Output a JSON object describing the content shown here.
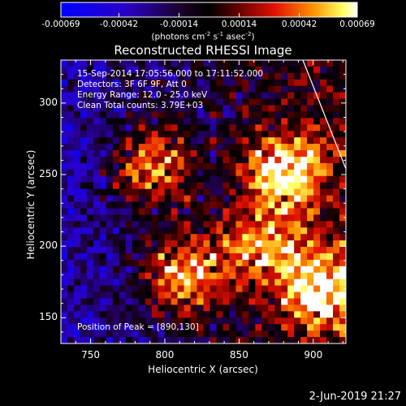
{
  "title": "Reconstructed RHESSI Image",
  "colorbar": {
    "tick_labels": [
      "-0.00069",
      "-0.00042",
      "-0.00014",
      "0.00014",
      "0.00042",
      "0.00069"
    ],
    "range": [
      -0.00069,
      0.00069
    ],
    "units_prefix": "(photons cm",
    "units_exp1": "-2",
    "units_mid1": " s",
    "units_exp2": "-1",
    "units_mid2": " asec",
    "units_exp3": "-2",
    "units_suffix": ")"
  },
  "info": {
    "time_range": "15-Sep-2014 17:05:56.000 to 17:11:52.000",
    "detectors": "Detectors: 3F 6F 9F, Att 0",
    "energy_range": "Energy Range: 12.0 - 25.0 keV",
    "algorithm": "Clean     Total counts: 3.79E+03"
  },
  "peak_text": "Position of Peak = [890,130]",
  "plot_date": "2-Jun-2019 21:27",
  "chart_data": {
    "type": "heatmap",
    "title": "Reconstructed RHESSI Image",
    "xlabel": "Heliocentric X (arcsec)",
    "ylabel": "Heliocentric Y (arcsec)",
    "xlim": [
      730,
      922
    ],
    "ylim": [
      132,
      330
    ],
    "x_ticks": [
      750,
      800,
      850,
      900
    ],
    "y_ticks": [
      150,
      200,
      250,
      300
    ],
    "x_tick_labels": [
      "750",
      "800",
      "850",
      "900"
    ],
    "y_tick_labels": [
      "150",
      "200",
      "250",
      "300"
    ],
    "colormap": "blue-black-red-yellow-white",
    "limb_line": [
      [
        893,
        330
      ],
      [
        922,
        254
      ]
    ],
    "bright_regions": [
      {
        "x": 792,
        "y": 255,
        "level": 0.8
      },
      {
        "x": 812,
        "y": 180,
        "level": 0.9
      },
      {
        "x": 880,
        "y": 252,
        "level": 0.95
      },
      {
        "x": 905,
        "y": 170,
        "level": 0.9
      },
      {
        "x": 865,
        "y": 200,
        "level": 0.7
      }
    ],
    "grid": false
  }
}
